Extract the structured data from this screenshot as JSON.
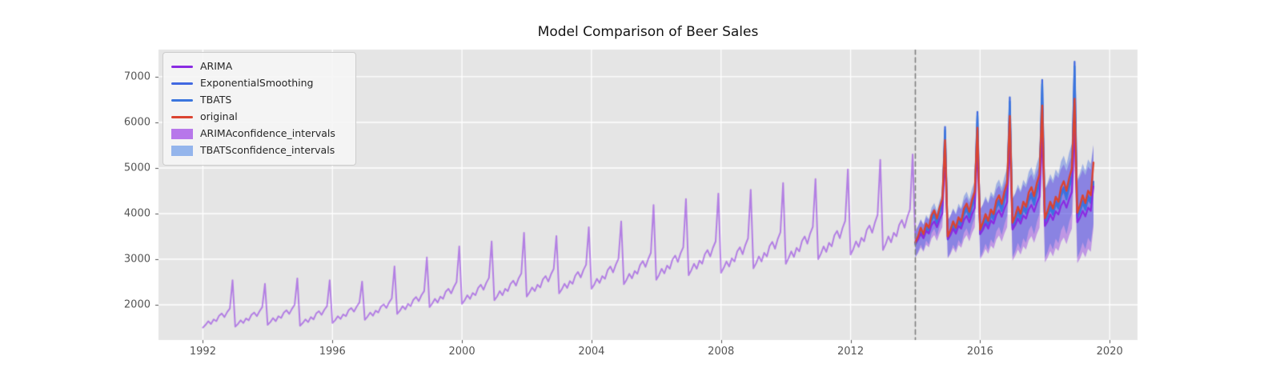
{
  "title": "Model Comparison of Beer Sales",
  "colors": {
    "figure_bg": "#ffffff",
    "plot_bg": "#e5e5e5",
    "grid": "#ffffff",
    "tick_text": "#555555",
    "boundary_line": "#808080",
    "history_line": "rgba(138,43,226,0.55)",
    "arima_line": "#8A2BE2",
    "exponential_smoothing_line": "#4169E1",
    "tbats_line": "#3B76DE",
    "original_line": "#DB4431",
    "arima_band_fill": "rgba(138,43,226,0.42)",
    "tbats_band_fill": "rgba(65,105,225,0.42)",
    "arima_band_swatch": "#B777EA",
    "tbats_band_swatch": "#94B5EC"
  },
  "legend": [
    {
      "label": "ARIMA",
      "swatch": "line",
      "color": "#8A2BE2"
    },
    {
      "label": "ExponentialSmoothing",
      "swatch": "line",
      "color": "#4169E1"
    },
    {
      "label": "TBATS",
      "swatch": "line",
      "color": "#3B76DE"
    },
    {
      "label": "original",
      "swatch": "line",
      "color": "#DB4431"
    },
    {
      "label": "ARIMAconfidence_intervals",
      "swatch": "patch",
      "color": "#B777EA"
    },
    {
      "label": "TBATSconfidence_intervals",
      "swatch": "patch",
      "color": "#94B5EC"
    }
  ],
  "chart_data": {
    "type": "line",
    "title": "Model Comparison of Beer Sales",
    "xlabel": "",
    "ylabel": "",
    "grid": true,
    "legend_position": "upper-left",
    "x_axis": {
      "unit": "year",
      "ticks": [
        1992,
        1996,
        2000,
        2004,
        2008,
        2012,
        2016,
        2020
      ],
      "range": [
        1990.63,
        2020.86
      ]
    },
    "y_axis": {
      "ticks": [
        2000,
        3000,
        4000,
        5000,
        6000,
        7000
      ],
      "range": [
        1228,
        7596
      ]
    },
    "forecast_boundary_year": 2014.0,
    "series": [
      {
        "name": "original_history",
        "color_key": "history_line",
        "width": 2,
        "start_year": 1992,
        "cadence": "monthly",
        "values": [
          1500,
          1560,
          1640,
          1580,
          1680,
          1640,
          1760,
          1810,
          1730,
          1840,
          1920,
          2540,
          1520,
          1580,
          1660,
          1600,
          1700,
          1660,
          1780,
          1830,
          1750,
          1860,
          1950,
          2460,
          1560,
          1620,
          1710,
          1640,
          1750,
          1710,
          1830,
          1880,
          1800,
          1910,
          2000,
          2580,
          1540,
          1600,
          1680,
          1620,
          1730,
          1680,
          1810,
          1860,
          1780,
          1890,
          1970,
          2540,
          1600,
          1660,
          1750,
          1690,
          1790,
          1750,
          1880,
          1930,
          1850,
          1960,
          2050,
          2510,
          1670,
          1740,
          1830,
          1760,
          1870,
          1830,
          1960,
          2010,
          1930,
          2050,
          2140,
          2840,
          1800,
          1870,
          1970,
          1900,
          2020,
          1970,
          2110,
          2170,
          2080,
          2210,
          2300,
          3040,
          1950,
          2030,
          2130,
          2050,
          2180,
          2130,
          2290,
          2350,
          2250,
          2390,
          2500,
          3280,
          2020,
          2100,
          2210,
          2130,
          2260,
          2210,
          2370,
          2440,
          2330,
          2480,
          2590,
          3390,
          2100,
          2180,
          2300,
          2210,
          2350,
          2300,
          2460,
          2530,
          2420,
          2580,
          2690,
          3580,
          2180,
          2270,
          2380,
          2300,
          2440,
          2380,
          2560,
          2630,
          2510,
          2670,
          2790,
          3510,
          2250,
          2340,
          2460,
          2370,
          2520,
          2460,
          2640,
          2720,
          2600,
          2760,
          2880,
          3700,
          2350,
          2440,
          2570,
          2480,
          2630,
          2570,
          2760,
          2840,
          2710,
          2880,
          3010,
          3830,
          2450,
          2550,
          2680,
          2580,
          2740,
          2680,
          2870,
          2960,
          2830,
          3000,
          3140,
          4190,
          2550,
          2650,
          2790,
          2690,
          2860,
          2790,
          2990,
          3080,
          2940,
          3130,
          3260,
          4320,
          2650,
          2760,
          2900,
          2790,
          2970,
          2900,
          3110,
          3200,
          3060,
          3250,
          3390,
          4440,
          2700,
          2810,
          2950,
          2840,
          3020,
          2950,
          3170,
          3260,
          3110,
          3310,
          3460,
          4520,
          2800,
          2910,
          3060,
          2950,
          3140,
          3060,
          3290,
          3380,
          3230,
          3440,
          3590,
          4670,
          2900,
          3020,
          3170,
          3050,
          3250,
          3170,
          3400,
          3500,
          3340,
          3560,
          3710,
          4760,
          3000,
          3120,
          3280,
          3160,
          3360,
          3280,
          3520,
          3620,
          3460,
          3680,
          3840,
          4970,
          3100,
          3220,
          3390,
          3270,
          3470,
          3390,
          3640,
          3740,
          3580,
          3800,
          3970,
          5180,
          3200,
          3330,
          3500,
          3370,
          3580,
          3500,
          3750,
          3860,
          3690,
          3920,
          4090,
          5300,
          3370
        ]
      },
      {
        "name": "ExponentialSmoothing",
        "color_key": "exponential_smoothing_line",
        "width": 2.2,
        "start_year": 2014,
        "cadence": "monthly",
        "values": [
          3360,
          3480,
          3650,
          3520,
          3740,
          3650,
          3900,
          4000,
          3830,
          4060,
          4230,
          5900,
          3480,
          3600,
          3780,
          3650,
          3870,
          3780,
          4040,
          4140,
          3970,
          4210,
          4380,
          6230,
          3610,
          3740,
          3920,
          3780,
          4020,
          3920,
          4190,
          4300,
          4110,
          4360,
          4540,
          6550,
          3740,
          3870,
          4060,
          3920,
          4160,
          4060,
          4340,
          4450,
          4260,
          4520,
          4710,
          6930,
          3840,
          3980,
          4170,
          4030,
          4280,
          4170,
          4460,
          4580,
          4380,
          4650,
          4840,
          7330,
          3950,
          4090,
          4290,
          4140,
          4400,
          4290,
          4700
        ]
      },
      {
        "name": "TBATS",
        "color_key": "tbats_line",
        "width": 2.2,
        "start_year": 2014,
        "cadence": "monthly",
        "values": [
          3320,
          3440,
          3600,
          3470,
          3690,
          3600,
          3850,
          3950,
          3780,
          4010,
          4170,
          5830,
          3430,
          3550,
          3720,
          3600,
          3820,
          3720,
          3980,
          4080,
          3910,
          4150,
          4310,
          6150,
          3550,
          3680,
          3860,
          3720,
          3960,
          3860,
          4130,
          4230,
          4050,
          4290,
          4470,
          6460,
          3680,
          3810,
          4000,
          3860,
          4100,
          4000,
          4270,
          4380,
          4190,
          4450,
          4640,
          6840,
          3780,
          3920,
          4110,
          3970,
          4210,
          4110,
          4390,
          4510,
          4310,
          4580,
          4770,
          7230,
          3890,
          4030,
          4230,
          4080,
          4330,
          4230,
          4650
        ]
      },
      {
        "name": "ARIMA",
        "color_key": "arima_line",
        "width": 2.2,
        "start_year": 2014,
        "cadence": "monthly",
        "values": [
          3340,
          3430,
          3560,
          3460,
          3620,
          3560,
          3750,
          3830,
          3700,
          3870,
          4000,
          5300,
          3440,
          3530,
          3670,
          3560,
          3730,
          3670,
          3860,
          3950,
          3810,
          3990,
          4120,
          5500,
          3550,
          3640,
          3780,
          3670,
          3850,
          3780,
          3980,
          4070,
          3930,
          4110,
          4250,
          5650,
          3650,
          3750,
          3890,
          3780,
          3960,
          3890,
          4090,
          4190,
          4040,
          4230,
          4370,
          5800,
          3730,
          3830,
          3980,
          3860,
          4050,
          3980,
          4180,
          4280,
          4130,
          4320,
          4470,
          5950,
          3810,
          3910,
          4060,
          3940,
          4130,
          4060,
          4600
        ]
      },
      {
        "name": "original",
        "color_key": "original_line",
        "width": 2.4,
        "start_year": 2014,
        "cadence": "monthly",
        "values": [
          3370,
          3500,
          3690,
          3550,
          3780,
          3690,
          3960,
          4070,
          3890,
          4140,
          4320,
          5610,
          3500,
          3640,
          3830,
          3690,
          3920,
          3830,
          4110,
          4220,
          4040,
          4290,
          4480,
          5880,
          3650,
          3800,
          3990,
          3840,
          4090,
          3990,
          4280,
          4400,
          4210,
          4480,
          4670,
          6140,
          3800,
          3950,
          4150,
          4000,
          4260,
          4150,
          4460,
          4580,
          4380,
          4660,
          4860,
          6370,
          3900,
          4060,
          4260,
          4110,
          4370,
          4260,
          4580,
          4710,
          4500,
          4780,
          4990,
          6520,
          4020,
          4180,
          4400,
          4230,
          4500,
          4400,
          5120
        ]
      }
    ],
    "bands": [
      {
        "name": "ARIMAconfidence_intervals",
        "base": "ARIMA",
        "fill_key": "arima_band_fill",
        "half_width_by_year": {
          "2014": 300,
          "2015": 420,
          "2016": 550,
          "2017": 680,
          "2018": 800,
          "2019": 900
        },
        "peak_upper_factor": 0.2
      },
      {
        "name": "TBATSconfidence_intervals",
        "base": "TBATS",
        "fill_key": "tbats_band_fill",
        "half_width_by_year": {
          "2014": 280,
          "2015": 400,
          "2016": 520,
          "2017": 640,
          "2018": 760,
          "2019": 860
        },
        "peak_upper_factor": 0.2
      }
    ]
  }
}
